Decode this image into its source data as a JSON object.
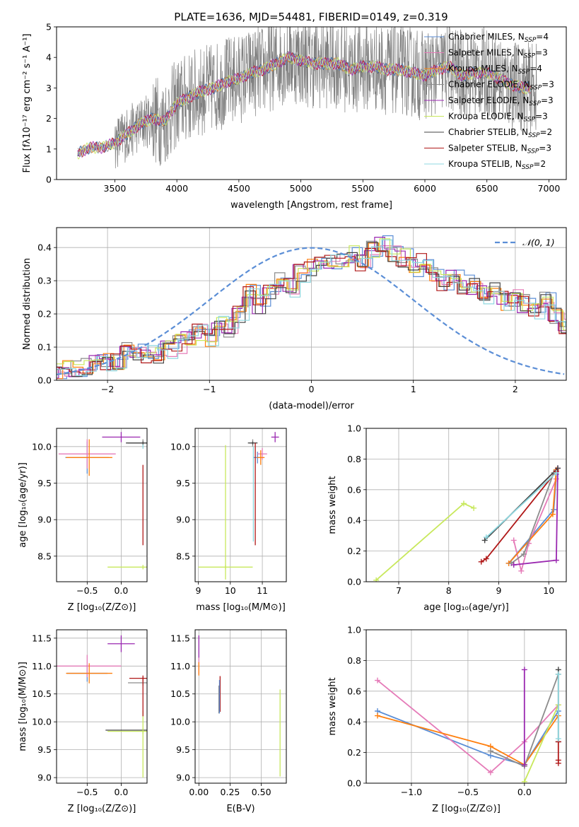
{
  "figure": {
    "title": "PLATE=1636, MJD=54481, FIBERID=0149, z=0.319",
    "colors": {
      "Chabrier MILES": "#5b8ed6",
      "Salpeter MILES": "#e57bb8",
      "Kroupa MILES": "#ff7f0e",
      "Chabrier ELODIE": "#8c8c8c",
      "Salpeter ELODIE": "#9a28b0",
      "Kroupa ELODIE": "#c8e85c",
      "Chabrier STELIB": "#444444",
      "Salpeter STELIB": "#b01818",
      "Kroupa STELIB": "#8fd8e0",
      "data": "#808080",
      "normal": "#5b8ed6",
      "grid": "#b0b0b0"
    }
  },
  "chart_data": [
    {
      "id": "spectrum",
      "type": "line",
      "title": "PLATE=1636, MJD=54481, FIBERID=0149, z=0.319",
      "xlabel": "wavelength [Angstrom, rest frame]",
      "ylabel": "Flux [fλ10⁻¹⁷ erg cm⁻² s⁻¹ A⁻¹]",
      "xlim": [
        3030,
        7140
      ],
      "ylim": [
        0,
        5
      ],
      "xticks": [
        3500,
        4000,
        4500,
        5000,
        5500,
        6000,
        6500,
        7000
      ],
      "yticks": [
        0,
        1,
        2,
        3,
        4,
        5
      ],
      "grid": false,
      "legend_position": "right",
      "legend": [
        {
          "label": "Chabrier MILES, N",
          "sub": "SSP",
          "tail": "=4"
        },
        {
          "label": "Salpeter MILES, N",
          "sub": "SSP",
          "tail": "=3"
        },
        {
          "label": "Kroupa MILES, N",
          "sub": "SSP",
          "tail": "=4"
        },
        {
          "label": "Chabrier ELODIE, N",
          "sub": "SSP",
          "tail": "=3"
        },
        {
          "label": "Salpeter ELODIE, N",
          "sub": "SSP",
          "tail": "=3"
        },
        {
          "label": "Kroupa ELODIE, N",
          "sub": "SSP",
          "tail": "=3"
        },
        {
          "label": "Chabrier STELIB, N",
          "sub": "SSP",
          "tail": "=2"
        },
        {
          "label": "Salpeter STELIB, N",
          "sub": "SSP",
          "tail": "=3"
        },
        {
          "label": "Kroupa STELIB, N",
          "sub": "SSP",
          "tail": "=2"
        }
      ],
      "continuum": {
        "x": [
          3200,
          3300,
          3400,
          3500,
          3600,
          3700,
          3800,
          3900,
          4000,
          4100,
          4200,
          4300,
          4400,
          4500,
          4600,
          4700,
          4800,
          4900,
          5000,
          5100,
          5200,
          5300,
          5400,
          5500,
          5600,
          5700,
          5800,
          5900,
          6000,
          6100,
          6200,
          6300,
          6400,
          6500,
          6600,
          6700,
          6800
        ],
        "y": [
          0.85,
          1.05,
          1.05,
          1.2,
          1.5,
          1.8,
          2.0,
          1.9,
          2.5,
          2.7,
          2.9,
          3.0,
          3.2,
          3.3,
          3.5,
          3.6,
          3.8,
          4.0,
          3.9,
          3.8,
          3.8,
          3.8,
          3.6,
          3.7,
          3.7,
          3.6,
          3.6,
          3.5,
          3.4,
          3.6,
          3.7,
          3.4,
          3.5,
          3.5,
          3.3,
          3.1,
          3.0
        ]
      },
      "data_noise": {
        "x_start": 3500,
        "x_end": 6900,
        "amplitude": 1.5
      }
    },
    {
      "id": "residuals",
      "type": "area",
      "xlabel": "(data-model)/error",
      "ylabel": "Normed distribution",
      "xlim": [
        -2.5,
        2.5
      ],
      "ylim": [
        0,
        0.46
      ],
      "xticks": [
        -2,
        -1,
        0,
        1,
        2
      ],
      "yticks": [
        0.0,
        0.1,
        0.2,
        0.3,
        0.4
      ],
      "grid": true,
      "legend_position": "top-right",
      "legend": [
        {
          "label": "𝒩(0, 1)",
          "style": "dashed"
        }
      ],
      "normal_curve": {
        "mu": 0,
        "sigma": 1
      },
      "bin_width": 0.1,
      "bin_start": -2.5,
      "base_hist": [
        0.028,
        0.03,
        0.035,
        0.04,
        0.05,
        0.055,
        0.06,
        0.1,
        0.09,
        0.08,
        0.08,
        0.09,
        0.11,
        0.13,
        0.15,
        0.13,
        0.18,
        0.16,
        0.2,
        0.26,
        0.23,
        0.26,
        0.3,
        0.28,
        0.32,
        0.34,
        0.37,
        0.36,
        0.37,
        0.38,
        0.35,
        0.39,
        0.41,
        0.38,
        0.37,
        0.34,
        0.36,
        0.32,
        0.3,
        0.31,
        0.29,
        0.28,
        0.26,
        0.27,
        0.24,
        0.25,
        0.23,
        0.21,
        0.24,
        0.2,
        0.17,
        0.16,
        0.18,
        0.15,
        0.12,
        0.11,
        0.13,
        0.11,
        0.09,
        0.09,
        0.1,
        0.1,
        0.08,
        0.08,
        0.08,
        0.07,
        0.07,
        0.07,
        0.06,
        0.06,
        0.06,
        0.06,
        0.055,
        0.055,
        0.05,
        0.05,
        0.05,
        0.05,
        0.05,
        0.05
      ]
    },
    {
      "id": "age-vs-Z",
      "type": "scatter",
      "xlabel": "Z [log₁₀(Z/Z⊙)]",
      "ylabel": "age  [log₁₀(age/yr)]",
      "xlim": [
        -0.95,
        0.38
      ],
      "ylim": [
        8.15,
        10.25
      ],
      "xticks": [
        -0.5,
        0.0
      ],
      "yticks": [
        8.5,
        9.0,
        9.5,
        10.0
      ],
      "grid": true,
      "points": [
        {
          "s": 0,
          "x": -0.5,
          "y": 9.85,
          "xerr": 0.32,
          "yerr": 0.22
        },
        {
          "s": 1,
          "x": -0.5,
          "y": 9.9,
          "xerr": 0.42,
          "yerr": 0.2
        },
        {
          "s": 2,
          "x": -0.47,
          "y": 9.85,
          "xerr": 0.34,
          "yerr": 0.25
        },
        {
          "s": 3,
          "x": 0.32,
          "y": 10.05,
          "xerr": 0.22,
          "yerr": 0.05
        },
        {
          "s": 4,
          "x": 0.0,
          "y": 10.13,
          "xerr": 0.28,
          "yerr": 0.07
        },
        {
          "s": 5,
          "x": 0.32,
          "y": 8.35,
          "xerr": 0.52,
          "yerr": 0.03
        },
        {
          "s": 6,
          "x": 0.32,
          "y": 10.05,
          "xerr": 0.25,
          "yerr": 0.02
        },
        {
          "s": 7,
          "x": 0.32,
          "y": 9.2,
          "xerr": 0.0,
          "yerr": 0.55
        },
        {
          "s": 8,
          "x": 0.32,
          "y": 10.0,
          "xerr": 0.0,
          "yerr": 0.03
        }
      ]
    },
    {
      "id": "age-vs-mass",
      "type": "scatter",
      "xlabel": "mass [log₁₀(M/M⊙)]",
      "ylabel": "",
      "xlim": [
        8.9,
        11.75
      ],
      "ylim": [
        8.15,
        10.25
      ],
      "xticks": [
        9,
        10,
        11
      ],
      "yticks": [
        8.5,
        9.0,
        9.5,
        10.0
      ],
      "grid": true,
      "points": [
        {
          "s": 0,
          "x": 10.85,
          "y": 9.85,
          "xerr": 0.12,
          "yerr": 0.08
        },
        {
          "s": 1,
          "x": 11.0,
          "y": 9.9,
          "xerr": 0.15,
          "yerr": 0.08
        },
        {
          "s": 2,
          "x": 10.95,
          "y": 9.85,
          "xerr": 0.12,
          "yerr": 0.1
        },
        {
          "s": 3,
          "x": 10.7,
          "y": 10.05,
          "xerr": 0.1,
          "yerr": 0.05
        },
        {
          "s": 4,
          "x": 11.4,
          "y": 10.13,
          "xerr": 0.12,
          "yerr": 0.07
        },
        {
          "s": 5,
          "x": 9.85,
          "y": 8.35,
          "xerr": 0.85,
          "yerr": 0.03
        },
        {
          "s": 6,
          "x": 10.7,
          "y": 10.05,
          "xerr": 0.15,
          "yerr": 0.02
        },
        {
          "s": 7,
          "x": 10.78,
          "y": 9.35,
          "xerr": 0.0,
          "yerr": 0.7
        },
        {
          "s": 8,
          "x": 10.72,
          "y": 9.35,
          "xerr": 0.0,
          "yerr": 0.65
        },
        {
          "s": 5,
          "x": 9.85,
          "y": 9.1,
          "xerr": 0.0,
          "yerr": 0.92
        }
      ]
    },
    {
      "id": "weight-vs-age",
      "type": "line",
      "xlabel": "age  [log₁₀(age/yr)]",
      "ylabel": "mass weight",
      "xlim": [
        6.35,
        10.35
      ],
      "ylim": [
        0,
        1
      ],
      "xticks": [
        7,
        8,
        9,
        10
      ],
      "yticks": [
        0.0,
        0.2,
        0.4,
        0.6,
        0.8,
        1.0
      ],
      "grid": true,
      "series": [
        {
          "s": 0,
          "x": [
            9.2,
            10.1,
            10.15
          ],
          "y": [
            0.12,
            0.47,
            0.7
          ]
        },
        {
          "s": 1,
          "x": [
            9.3,
            9.45,
            9.6,
            10.15
          ],
          "y": [
            0.27,
            0.07,
            0.25,
            0.67
          ]
        },
        {
          "s": 2,
          "x": [
            9.2,
            10.08,
            10.15
          ],
          "y": [
            0.12,
            0.44,
            0.73
          ]
        },
        {
          "s": 3,
          "x": [
            9.25,
            9.5,
            10.1
          ],
          "y": [
            0.12,
            0.18,
            0.71
          ]
        },
        {
          "s": 4,
          "x": [
            9.3,
            10.15,
            10.18
          ],
          "y": [
            0.11,
            0.14,
            0.74
          ]
        },
        {
          "s": 5,
          "x": [
            6.55,
            8.3,
            8.5
          ],
          "y": [
            0.01,
            0.51,
            0.48
          ]
        },
        {
          "s": 6,
          "x": [
            8.72,
            10.18
          ],
          "y": [
            0.27,
            0.74
          ]
        },
        {
          "s": 7,
          "x": [
            8.65,
            8.75,
            10.15
          ],
          "y": [
            0.13,
            0.15,
            0.72
          ]
        },
        {
          "s": 8,
          "x": [
            8.75,
            10.15
          ],
          "y": [
            0.29,
            0.71
          ]
        }
      ]
    },
    {
      "id": "mass-vs-Z",
      "type": "scatter",
      "xlabel": "Z [log₁₀(Z/Z⊙)]",
      "ylabel": "mass [log₁₀(M/M⊙)]",
      "xlim": [
        -0.95,
        0.38
      ],
      "ylim": [
        8.9,
        11.65
      ],
      "xticks": [
        -0.5,
        0.0
      ],
      "yticks": [
        9.0,
        9.5,
        10.0,
        10.5,
        11.0,
        11.5
      ],
      "grid": true,
      "points": [
        {
          "s": 0,
          "x": -0.5,
          "y": 10.87,
          "xerr": 0.3,
          "yerr": 0.15
        },
        {
          "s": 1,
          "x": -0.5,
          "y": 11.0,
          "xerr": 0.5,
          "yerr": 0.2
        },
        {
          "s": 2,
          "x": -0.47,
          "y": 10.87,
          "xerr": 0.34,
          "yerr": 0.18
        },
        {
          "s": 3,
          "x": 0.32,
          "y": 10.7,
          "xerr": 0.22,
          "yerr": 0.05
        },
        {
          "s": 4,
          "x": 0.0,
          "y": 11.4,
          "xerr": 0.2,
          "yerr": 0.15
        },
        {
          "s": 5,
          "x": 0.32,
          "y": 9.83,
          "xerr": 0.52,
          "yerr": 0.05
        },
        {
          "s": 6,
          "x": 0.32,
          "y": 9.85,
          "xerr": 0.55,
          "yerr": 0.02
        },
        {
          "s": 7,
          "x": 0.32,
          "y": 10.78,
          "xerr": 0.2,
          "yerr": 0.05
        },
        {
          "s": 5,
          "x": 0.32,
          "y": 9.6,
          "xerr": 0.0,
          "yerr": 0.6
        },
        {
          "s": 7,
          "x": 0.32,
          "y": 10.45,
          "xerr": 0.0,
          "yerr": 0.35
        }
      ]
    },
    {
      "id": "mass-vs-EBV",
      "type": "scatter",
      "xlabel": "E(B-V)",
      "ylabel": "",
      "xlim": [
        -0.03,
        0.7
      ],
      "ylim": [
        8.9,
        11.65
      ],
      "xticks": [
        0.0,
        0.25,
        0.5
      ],
      "yticks": [
        9.0,
        9.5,
        10.0,
        10.5,
        11.0,
        11.5
      ],
      "grid": true,
      "points": [
        {
          "s": 4,
          "x": 0.0,
          "y": 11.35,
          "xerr": 0.0,
          "yerr": 0.2
        },
        {
          "s": 1,
          "x": 0.0,
          "y": 11.0,
          "xerr": 0.0,
          "yerr": 0.15
        },
        {
          "s": 2,
          "x": 0.0,
          "y": 10.95,
          "xerr": 0.0,
          "yerr": 0.12
        },
        {
          "s": 7,
          "x": 0.17,
          "y": 10.5,
          "xerr": 0.0,
          "yerr": 0.32
        },
        {
          "s": 3,
          "x": 0.16,
          "y": 10.4,
          "xerr": 0.0,
          "yerr": 0.25
        },
        {
          "s": 0,
          "x": 0.165,
          "y": 10.45,
          "xerr": 0.0,
          "yerr": 0.3
        },
        {
          "s": 5,
          "x": 0.65,
          "y": 9.8,
          "xerr": 0.0,
          "yerr": 0.78
        }
      ]
    },
    {
      "id": "weight-vs-Z",
      "type": "line",
      "xlabel": "Z [log₁₀(Z/Z⊙)]",
      "ylabel": "mass weight",
      "xlim": [
        -1.4,
        0.37
      ],
      "ylim": [
        0,
        1
      ],
      "xticks": [
        -1.0,
        -0.5,
        0.0
      ],
      "yticks": [
        0.0,
        0.2,
        0.4,
        0.6,
        0.8,
        1.0
      ],
      "grid": true,
      "series": [
        {
          "s": 0,
          "x": [
            -1.3,
            -0.3,
            0.0,
            0.3
          ],
          "y": [
            0.47,
            0.18,
            0.12,
            0.47
          ]
        },
        {
          "s": 1,
          "x": [
            -1.3,
            -0.3,
            0.0,
            0.3
          ],
          "y": [
            0.67,
            0.07,
            0.27,
            0.51
          ]
        },
        {
          "s": 2,
          "x": [
            -1.3,
            -0.3,
            0.0,
            0.3
          ],
          "y": [
            0.44,
            0.24,
            0.12,
            0.44
          ]
        },
        {
          "s": 3,
          "x": [
            -0.3,
            0.0,
            0.3
          ],
          "y": [
            0.21,
            0.11,
            0.71
          ]
        },
        {
          "s": 4,
          "x": [
            0.0,
            0.0
          ],
          "y": [
            0.12,
            0.74
          ]
        },
        {
          "s": 5,
          "x": [
            0.0,
            0.3
          ],
          "y": [
            0.01,
            0.51
          ]
        },
        {
          "s": 6,
          "x": [
            0.3,
            0.3
          ],
          "y": [
            0.27,
            0.74
          ]
        },
        {
          "s": 7,
          "x": [
            0.3,
            0.3,
            0.3
          ],
          "y": [
            0.13,
            0.15,
            0.27
          ]
        },
        {
          "s": 8,
          "x": [
            0.3,
            0.3
          ],
          "y": [
            0.29,
            0.71
          ]
        }
      ]
    }
  ]
}
